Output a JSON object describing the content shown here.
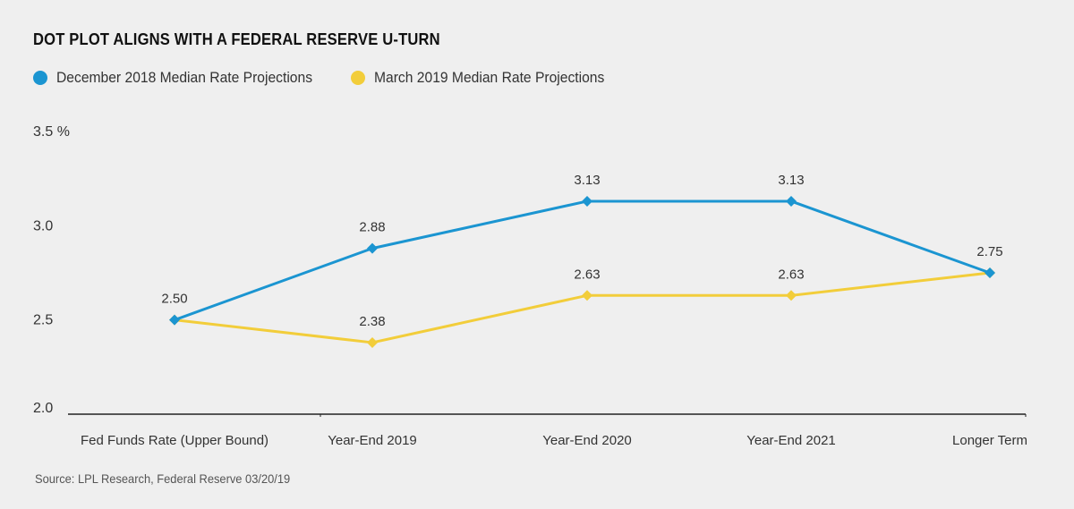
{
  "title": "DOT PLOT ALIGNS WITH A FEDERAL RESERVE U-TURN",
  "source": "Source: LPL Research, Federal Reserve 03/20/19",
  "colors": {
    "blue": "#1b95d1",
    "yellow": "#f2cd3a",
    "axis": "#222222"
  },
  "chart_data": {
    "type": "line",
    "categories": [
      "Fed Funds Rate (Upper Bound)",
      "Year-End 2019",
      "Year-End 2020",
      "Year-End 2021",
      "Longer Term"
    ],
    "series": [
      {
        "name": "December 2018 Median Rate Projections",
        "color": "#1b95d1",
        "values": [
          2.5,
          2.88,
          3.13,
          3.13,
          2.75
        ],
        "labels": [
          "2.50",
          "2.88",
          "3.13",
          "3.13",
          "2.75"
        ]
      },
      {
        "name": "March 2019 Median Rate Projections",
        "color": "#f2cd3a",
        "values": [
          2.5,
          2.38,
          2.63,
          2.63,
          2.75
        ],
        "labels": [
          "",
          "2.38",
          "2.63",
          "2.63",
          ""
        ]
      }
    ],
    "yticks": [
      {
        "value": 2.0,
        "label": "2.0"
      },
      {
        "value": 2.5,
        "label": "2.5"
      },
      {
        "value": 3.0,
        "label": "3.0"
      },
      {
        "value": 3.5,
        "label": "3.5 %"
      }
    ],
    "ylim": [
      2.0,
      3.5
    ],
    "marker": "diamond",
    "grid": false,
    "legend_position": "top-left"
  }
}
